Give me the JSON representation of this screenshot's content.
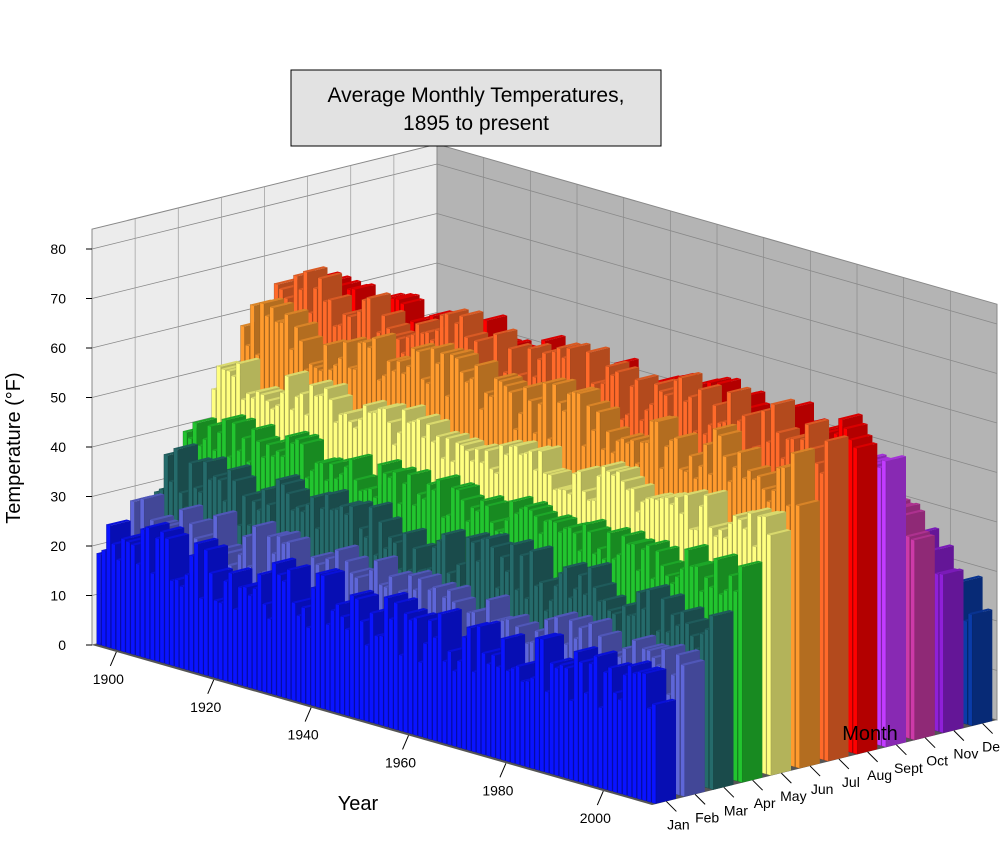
{
  "chart_data": {
    "type": "bar",
    "subtype": "3d-bar",
    "title_lines": [
      "Average Monthly Temperatures,",
      "1895 to present"
    ],
    "xlabel": "Year",
    "ylabel": "Month",
    "zlabel": "Temperature (°F)",
    "year_ticks": [
      "1900",
      "1920",
      "1940",
      "1960",
      "1980",
      "2000"
    ],
    "month_ticks": [
      "Jan",
      "Feb",
      "Mar",
      "Apr",
      "May",
      "Jun",
      "Jul",
      "Aug",
      "Sept",
      "Oct",
      "Nov",
      "Dec"
    ],
    "z_ticks": [
      "0",
      "10",
      "20",
      "30",
      "40",
      "50",
      "60",
      "70",
      "80"
    ],
    "year_range": [
      1895,
      2010
    ],
    "zlim": [
      0,
      80
    ],
    "grid": true,
    "months": [
      {
        "name": "Jan",
        "color": "#0a14ff",
        "base": 21
      },
      {
        "name": "Feb",
        "color": "#5e66d8",
        "base": 24
      },
      {
        "name": "Mar",
        "color": "#256b6b",
        "base": 32
      },
      {
        "name": "Apr",
        "color": "#22c52f",
        "base": 40
      },
      {
        "name": "May",
        "color": "#ffff80",
        "base": 49
      },
      {
        "name": "Jun",
        "color": "#ff9b2e",
        "base": 58
      },
      {
        "name": "Jul",
        "color": "#ff6a2a",
        "base": 63
      },
      {
        "name": "Aug",
        "color": "#ff0000",
        "base": 61
      },
      {
        "name": "Sept",
        "color": "#c23bff",
        "base": 54
      },
      {
        "name": "Oct",
        "color": "#cc3aa8",
        "base": 44
      },
      {
        "name": "Nov",
        "color": "#8f20d8",
        "base": 33
      },
      {
        "name": "Dec",
        "color": "#0a3ca8",
        "base": 24
      }
    ]
  }
}
